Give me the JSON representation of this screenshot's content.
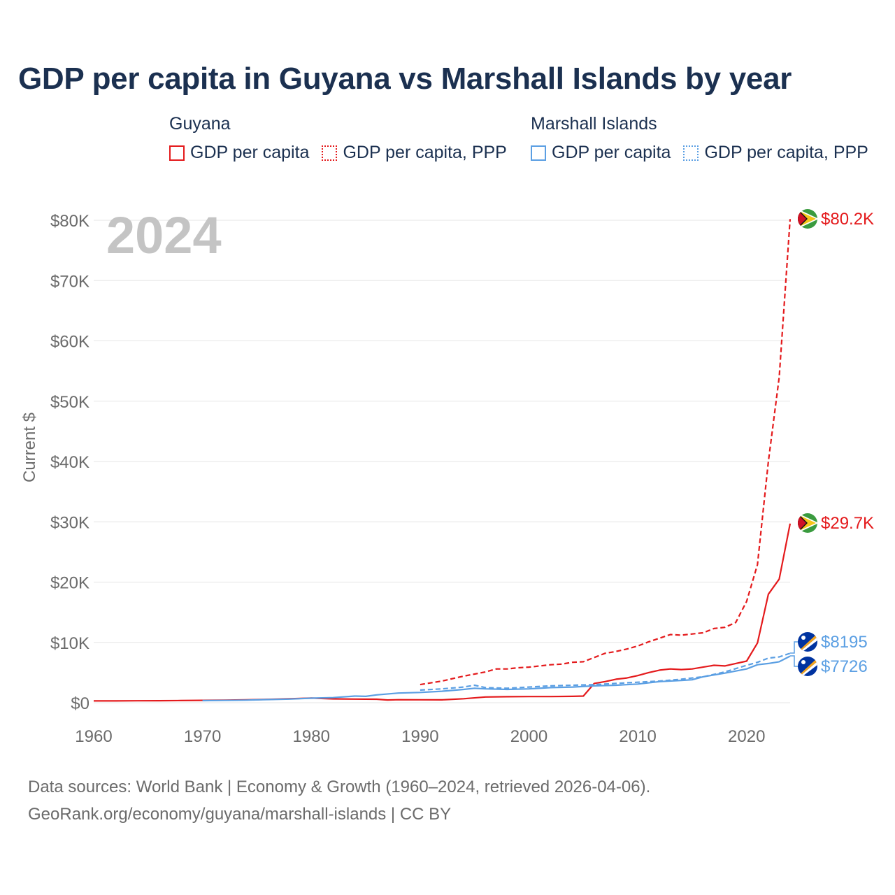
{
  "title": "GDP per capita in Guyana vs Marshall Islands by year",
  "legend": {
    "groups": [
      {
        "name": "Guyana",
        "items": [
          "GDP per capita",
          "GDP per capita, PPP"
        ],
        "color": "#e41a1c"
      },
      {
        "name": "Marshall Islands",
        "items": [
          "GDP per capita",
          "GDP per capita, PPP"
        ],
        "color": "#5b9fe3"
      }
    ]
  },
  "year_overlay": "2024",
  "footer": {
    "line1": "Data sources: World Bank | Economy & Growth (1960–2024, retrieved 2026-04-06).",
    "line2": "GeoRank.org/economy/guyana/marshall-islands | CC BY"
  },
  "chart_data": {
    "type": "line",
    "title": "GDP per capita in Guyana vs Marshall Islands by year",
    "xlabel": "",
    "ylabel": "Current $",
    "xlim": [
      1960,
      2024
    ],
    "ylim": [
      0,
      80000
    ],
    "x_ticks": [
      1960,
      1970,
      1980,
      1990,
      2000,
      2010,
      2020
    ],
    "y_ticks": [
      0,
      10000,
      20000,
      30000,
      40000,
      50000,
      60000,
      70000,
      80000
    ],
    "y_tick_labels": [
      "$0",
      "$10K",
      "$20K",
      "$30K",
      "$40K",
      "$50K",
      "$60K",
      "$70K",
      "$80K"
    ],
    "grid": true,
    "series": [
      {
        "name": "Guyana GDP per capita",
        "color": "#e41a1c",
        "style": "solid",
        "end_label": "$29.7K",
        "x": [
          1960,
          1962,
          1964,
          1966,
          1968,
          1970,
          1972,
          1974,
          1976,
          1978,
          1980,
          1982,
          1984,
          1986,
          1987,
          1988,
          1990,
          1992,
          1994,
          1996,
          1998,
          2000,
          2002,
          2004,
          2005,
          2006,
          2007,
          2008,
          2009,
          2010,
          2011,
          2012,
          2013,
          2014,
          2015,
          2016,
          2017,
          2018,
          2019,
          2020,
          2021,
          2022,
          2023,
          2024
        ],
        "y": [
          300,
          300,
          320,
          340,
          360,
          390,
          420,
          480,
          560,
          650,
          760,
          640,
          600,
          580,
          450,
          500,
          490,
          480,
          660,
          950,
          1000,
          1020,
          1020,
          1050,
          1100,
          3200,
          3500,
          3900,
          4100,
          4500,
          5000,
          5400,
          5600,
          5500,
          5600,
          5900,
          6200,
          6100,
          6500,
          6900,
          9900,
          18000,
          20500,
          29700
        ]
      },
      {
        "name": "Guyana GDP per capita, PPP",
        "color": "#e41a1c",
        "style": "dashed",
        "end_label": "$80.2K",
        "x": [
          1990,
          1992,
          1994,
          1996,
          1997,
          1998,
          1999,
          2000,
          2001,
          2002,
          2003,
          2004,
          2005,
          2006,
          2007,
          2008,
          2009,
          2010,
          2011,
          2012,
          2013,
          2014,
          2015,
          2016,
          2017,
          2018,
          2019,
          2020,
          2021,
          2022,
          2023,
          2024
        ],
        "y": [
          3000,
          3600,
          4400,
          5100,
          5600,
          5600,
          5800,
          5900,
          6100,
          6300,
          6400,
          6700,
          6800,
          7500,
          8200,
          8500,
          8900,
          9400,
          10100,
          10700,
          11300,
          11200,
          11400,
          11600,
          12300,
          12500,
          13300,
          16800,
          22900,
          40000,
          54000,
          80200
        ]
      },
      {
        "name": "Marshall Islands GDP per capita",
        "color": "#5b9fe3",
        "style": "solid",
        "end_label": "$7726",
        "x": [
          1970,
          1972,
          1974,
          1976,
          1978,
          1980,
          1982,
          1984,
          1985,
          1986,
          1988,
          1990,
          1992,
          1994,
          1995,
          1996,
          1998,
          2000,
          2002,
          2004,
          2006,
          2008,
          2010,
          2012,
          2014,
          2015,
          2016,
          2018,
          2020,
          2021,
          2022,
          2023,
          2024
        ],
        "y": [
          350,
          380,
          430,
          520,
          600,
          750,
          850,
          1100,
          1050,
          1300,
          1600,
          1700,
          1900,
          2200,
          2400,
          2300,
          2200,
          2300,
          2500,
          2600,
          2800,
          2900,
          3100,
          3500,
          3700,
          3800,
          4300,
          4900,
          5600,
          6300,
          6500,
          6800,
          7726
        ]
      },
      {
        "name": "Marshall Islands GDP per capita, PPP",
        "color": "#5b9fe3",
        "style": "dashed",
        "end_label": "$8195",
        "x": [
          1990,
          1992,
          1994,
          1995,
          1996,
          1998,
          2000,
          2002,
          2004,
          2006,
          2008,
          2010,
          2012,
          2014,
          2016,
          2018,
          2020,
          2021,
          2022,
          2023,
          2024
        ],
        "y": [
          2100,
          2300,
          2600,
          2900,
          2500,
          2400,
          2600,
          2800,
          2900,
          3000,
          3200,
          3400,
          3600,
          3900,
          4300,
          5100,
          6200,
          6700,
          7400,
          7600,
          8195
        ]
      }
    ]
  }
}
